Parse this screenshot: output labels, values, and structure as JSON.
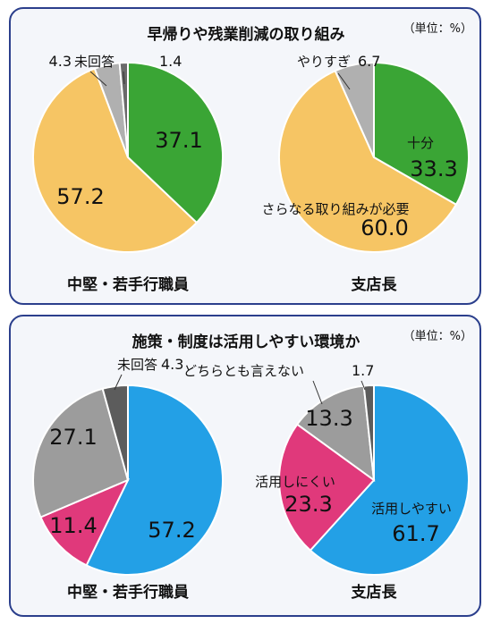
{
  "chart_data": [
    {
      "type": "pie",
      "title": "早帰りや残業削減の取り組み",
      "unit": "（単位：%）",
      "charts": [
        {
          "name": "中堅・若手行職員",
          "slices": [
            {
              "label": "",
              "value": 37.1,
              "color": "#3aa535"
            },
            {
              "label": "",
              "value": 57.2,
              "color": "#f6c564"
            },
            {
              "label": "",
              "value": 4.3,
              "color": "#b0b0b0"
            },
            {
              "label": "未回答",
              "value": 1.4,
              "color": "#6a6a6a"
            }
          ]
        },
        {
          "name": "支店長",
          "slices": [
            {
              "label": "十分",
              "value": 33.3,
              "color": "#3aa535"
            },
            {
              "label": "さらなる取り組みが必要",
              "value": 60.0,
              "color": "#f6c564"
            },
            {
              "label": "やりすぎ",
              "value": 6.7,
              "color": "#b0b0b0"
            }
          ]
        }
      ]
    },
    {
      "type": "pie",
      "title": "施策・制度は活用しやすい環境か",
      "unit": "（単位：%）",
      "charts": [
        {
          "name": "中堅・若手行職員",
          "slices": [
            {
              "label": "",
              "value": 57.2,
              "color": "#23a0e6"
            },
            {
              "label": "",
              "value": 11.4,
              "color": "#e0397b"
            },
            {
              "label": "",
              "value": 27.1,
              "color": "#9c9c9c"
            },
            {
              "label": "未回答",
              "value": 4.3,
              "color": "#5c5c5c"
            }
          ]
        },
        {
          "name": "支店長",
          "slices": [
            {
              "label": "活用しやすい",
              "value": 61.7,
              "color": "#23a0e6"
            },
            {
              "label": "活用しにくい",
              "value": 23.3,
              "color": "#e0397b"
            },
            {
              "label": "どちらとも言えない",
              "value": 13.3,
              "color": "#9c9c9c"
            },
            {
              "label": "",
              "value": 1.7,
              "color": "#5c5c5c"
            }
          ]
        }
      ]
    }
  ]
}
